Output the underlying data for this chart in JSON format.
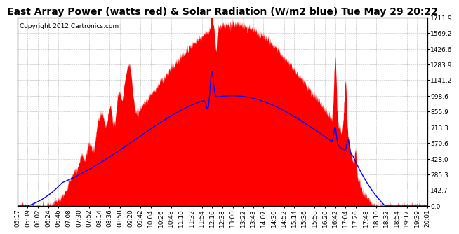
{
  "title": "East Array Power (watts red) & Solar Radiation (W/m2 blue) Tue May 29 20:22",
  "copyright": "Copyright 2012 Cartronics.com",
  "y_max": 1711.9,
  "y_ticks": [
    0.0,
    142.7,
    285.3,
    428.0,
    570.6,
    713.3,
    855.9,
    998.6,
    1141.2,
    1283.9,
    1426.6,
    1569.2,
    1711.9
  ],
  "x_labels": [
    "05:17",
    "05:39",
    "06:02",
    "06:24",
    "06:46",
    "07:08",
    "07:30",
    "07:52",
    "08:14",
    "08:36",
    "08:58",
    "09:20",
    "09:42",
    "10:04",
    "10:26",
    "10:48",
    "11:10",
    "11:32",
    "11:54",
    "12:16",
    "12:38",
    "13:00",
    "13:22",
    "13:43",
    "14:07",
    "14:30",
    "14:52",
    "15:14",
    "15:36",
    "15:58",
    "16:20",
    "16:42",
    "17:04",
    "17:26",
    "17:48",
    "18:10",
    "18:32",
    "18:54",
    "19:17",
    "19:39",
    "20:01"
  ],
  "power_color": "#FF0000",
  "radiation_color": "#0000FF",
  "background_color": "#FFFFFF",
  "grid_color": "#BBBBBB",
  "title_fontsize": 10,
  "copyright_fontsize": 6.5,
  "tick_fontsize": 6.5
}
